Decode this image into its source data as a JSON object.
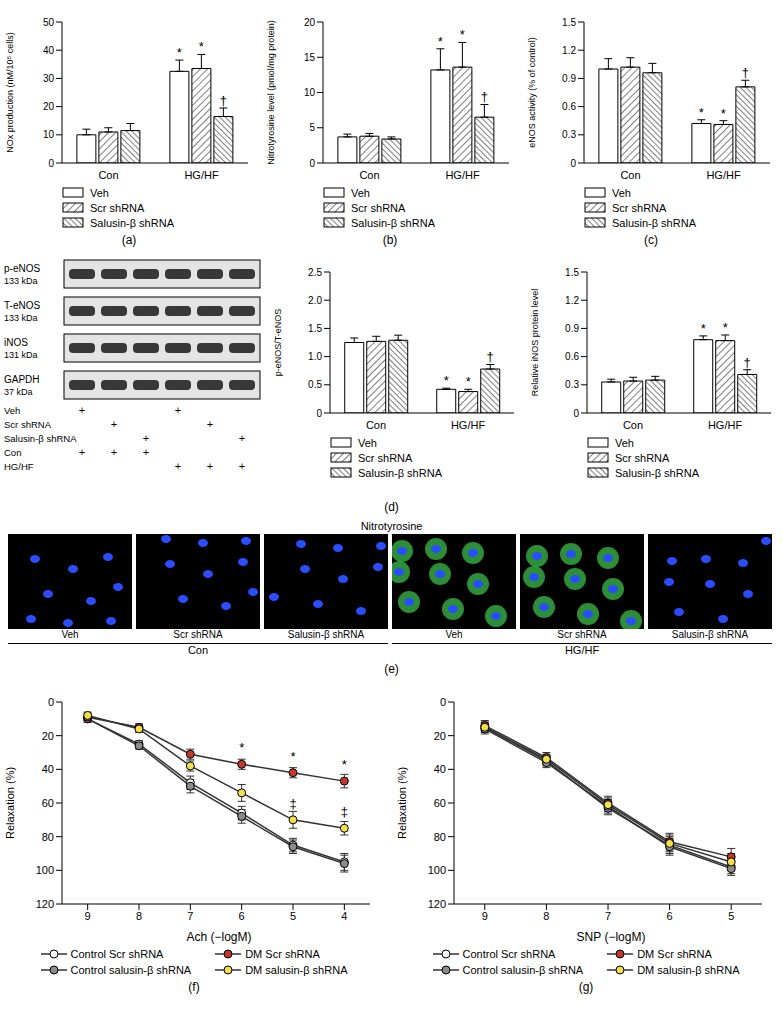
{
  "chart_data": [
    {
      "panel": "(a)",
      "type": "bar",
      "ylabel": "NOx production (nM/10⁵ cells)",
      "categories": [
        "Con",
        "HG/HF"
      ],
      "ylim": [
        0,
        50
      ],
      "yticks": [
        0,
        10,
        20,
        30,
        40,
        50
      ],
      "legend": "bottom",
      "series": [
        {
          "name": "Veh",
          "color": "#ffffff",
          "values": [
            10,
            32.5
          ],
          "errors": [
            2,
            4
          ],
          "annotations": [
            null,
            "*"
          ]
        },
        {
          "name": "Scr shRNA",
          "color": "#ffffff",
          "values": [
            11,
            33.5
          ],
          "errors": [
            1.5,
            5
          ],
          "annotations": [
            null,
            "*"
          ]
        },
        {
          "name": "Salusin-β shRNA",
          "color": "#ffffff",
          "values": [
            11.5,
            16.5
          ],
          "errors": [
            2.5,
            3
          ],
          "annotations": [
            null,
            "†"
          ]
        }
      ]
    },
    {
      "panel": "(b)",
      "type": "bar",
      "ylabel": "Nitrotyrosine level (pmol/mg protein)",
      "categories": [
        "Con",
        "HG/HF"
      ],
      "ylim": [
        0,
        20
      ],
      "yticks": [
        0,
        5,
        10,
        15,
        20
      ],
      "legend": "bottom",
      "series": [
        {
          "name": "Veh",
          "color": "#ffffff",
          "values": [
            3.7,
            13.2
          ],
          "errors": [
            0.4,
            3
          ],
          "annotations": [
            null,
            "*"
          ]
        },
        {
          "name": "Scr shRNA",
          "color": "#ffffff",
          "values": [
            3.8,
            13.6
          ],
          "errors": [
            0.4,
            3.5
          ],
          "annotations": [
            null,
            "*"
          ]
        },
        {
          "name": "Salusin-β shRNA",
          "color": "#ffffff",
          "values": [
            3.4,
            6.5
          ],
          "errors": [
            0.3,
            1.8
          ],
          "annotations": [
            null,
            "†"
          ]
        }
      ]
    },
    {
      "panel": "(c)",
      "type": "bar",
      "ylabel": "eNOS activity (% of control)",
      "categories": [
        "Con",
        "HG/HF"
      ],
      "ylim": [
        0,
        1.5
      ],
      "yticks": [
        0,
        0.3,
        0.6,
        0.9,
        1.2,
        1.5
      ],
      "legend": "bottom",
      "series": [
        {
          "name": "Veh",
          "color": "#ffffff",
          "values": [
            1.0,
            0.42
          ],
          "errors": [
            0.11,
            0.04
          ],
          "annotations": [
            null,
            "*"
          ]
        },
        {
          "name": "Scr shRNA",
          "color": "#ffffff",
          "values": [
            1.02,
            0.41
          ],
          "errors": [
            0.1,
            0.04
          ],
          "annotations": [
            null,
            "*"
          ]
        },
        {
          "name": "Salusin-β shRNA",
          "color": "#ffffff",
          "values": [
            0.96,
            0.81
          ],
          "errors": [
            0.1,
            0.07
          ],
          "annotations": [
            null,
            "†"
          ]
        }
      ]
    },
    {
      "type": "bar",
      "ylabel": "p-eNOS/T-eNOS",
      "categories": [
        "Con",
        "HG/HF"
      ],
      "ylim": [
        0,
        2.5
      ],
      "yticks": [
        0,
        0.5,
        {
          "value": 1,
          "label": "1.0"
        },
        1.5,
        {
          "value": 2,
          "label": "2.0"
        },
        2.5
      ],
      "legend": "bottom",
      "series": [
        {
          "name": "Veh",
          "color": "#ffffff",
          "values": [
            1.25,
            0.42
          ],
          "errors": [
            0.08,
            0.02
          ],
          "annotations": [
            null,
            "*"
          ]
        },
        {
          "name": "Scr shRNA",
          "color": "#ffffff",
          "values": [
            1.27,
            0.38
          ],
          "errors": [
            0.09,
            0.04
          ],
          "annotations": [
            null,
            "*"
          ]
        },
        {
          "name": "Salusin-β shRNA",
          "color": "#ffffff",
          "values": [
            1.29,
            0.78
          ],
          "errors": [
            0.09,
            0.08
          ],
          "annotations": [
            null,
            "†"
          ]
        }
      ]
    },
    {
      "type": "bar",
      "ylabel": "Relative iNOS protein level",
      "categories": [
        "Con",
        "HG/HF"
      ],
      "ylim": [
        0,
        1.5
      ],
      "yticks": [
        0,
        0.3,
        0.6,
        0.9,
        1.2,
        1.5
      ],
      "legend": "bottom",
      "series": [
        {
          "name": "Veh",
          "color": "#ffffff",
          "values": [
            0.33,
            0.78
          ],
          "errors": [
            0.03,
            0.04
          ],
          "annotations": [
            null,
            "*"
          ]
        },
        {
          "name": "Scr shRNA",
          "color": "#ffffff",
          "values": [
            0.34,
            0.77
          ],
          "errors": [
            0.04,
            0.06
          ],
          "annotations": [
            null,
            "*"
          ]
        },
        {
          "name": "Salusin-β shRNA",
          "color": "#ffffff",
          "values": [
            0.35,
            0.41
          ],
          "errors": [
            0.04,
            0.05
          ],
          "annotations": [
            null,
            "†"
          ]
        }
      ]
    },
    {
      "panel": "(f)",
      "type": "line",
      "xlabel": "Ach (−logM)",
      "ylabel": "Relaxation (%)",
      "x": [
        9,
        8,
        7,
        6,
        5,
        4
      ],
      "xlim": [
        9.5,
        3.5
      ],
      "xticks": [
        9,
        8,
        7,
        6,
        5,
        4
      ],
      "ylim": [
        120,
        0
      ],
      "yticks": [
        0,
        20,
        40,
        60,
        80,
        100,
        120
      ],
      "legend": "bottom",
      "series": [
        {
          "name": "Control Scr shRNA",
          "color": "#ffffff",
          "marker": "o",
          "values": [
            10,
            25,
            48,
            66,
            85,
            95
          ],
          "errors": [
            2,
            2,
            4,
            4,
            4,
            5
          ]
        },
        {
          "name": "Control salusin-β shRNA",
          "color": "#8c8c8c",
          "marker": "o",
          "values": [
            10,
            26,
            50,
            68,
            86,
            96
          ],
          "errors": [
            2,
            2,
            4,
            4,
            4,
            5
          ]
        },
        {
          "name": "DM Scr shRNA",
          "color": "#c0392b",
          "marker": "o",
          "values": [
            9,
            15,
            31,
            37,
            42,
            47
          ],
          "errors": [
            2,
            2,
            3,
            3,
            3,
            4
          ],
          "annotations": [
            null,
            null,
            null,
            "*",
            "*",
            "*"
          ]
        },
        {
          "name": "DM salusin-β shRNA",
          "color": "#f0e050",
          "marker": "o",
          "values": [
            8,
            16,
            38,
            54,
            70,
            75
          ],
          "errors": [
            2,
            2,
            3,
            5,
            5,
            4
          ],
          "annotations": [
            null,
            null,
            null,
            null,
            "‡",
            "‡"
          ]
        }
      ]
    },
    {
      "panel": "(g)",
      "type": "line",
      "xlabel": "SNP (−logM)",
      "ylabel": "Relaxation (%)",
      "x": [
        9,
        8,
        7,
        6,
        5
      ],
      "xlim": [
        9.5,
        4.5
      ],
      "xticks": [
        9,
        8,
        7,
        6,
        5
      ],
      "ylim": [
        120,
        0
      ],
      "yticks": [
        0,
        20,
        40,
        60,
        80,
        100,
        120
      ],
      "legend": "bottom",
      "series": [
        {
          "name": "Control Scr shRNA",
          "color": "#ffffff",
          "marker": "o",
          "values": [
            15,
            35,
            63,
            85,
            98
          ],
          "errors": [
            3,
            3,
            4,
            5,
            4
          ]
        },
        {
          "name": "Control salusin-β shRNA",
          "color": "#8c8c8c",
          "marker": "o",
          "values": [
            16,
            36,
            62,
            86,
            99
          ],
          "errors": [
            3,
            3,
            4,
            5,
            4
          ]
        },
        {
          "name": "DM Scr shRNA",
          "color": "#c0392b",
          "marker": "o",
          "values": [
            14,
            33,
            60,
            83,
            92
          ],
          "errors": [
            3,
            3,
            4,
            5,
            5
          ]
        },
        {
          "name": "DM salusin-β shRNA",
          "color": "#f0e050",
          "marker": "o",
          "values": [
            15,
            34,
            61,
            84,
            95
          ],
          "errors": [
            3,
            3,
            4,
            5,
            5
          ]
        }
      ]
    }
  ],
  "western_blot": {
    "panel": "(d)",
    "bands": [
      {
        "name": "p-eNOS",
        "size": "133 kDa"
      },
      {
        "name": "T-eNOS",
        "size": "133 kDa"
      },
      {
        "name": "iNOS",
        "size": "131 kDa"
      },
      {
        "name": "GAPDH",
        "size": "37 kDa"
      }
    ],
    "conditions": [
      {
        "label": "Veh",
        "lanes": [
          "+",
          null,
          null,
          "+",
          null,
          null
        ]
      },
      {
        "label": "Scr shRNA",
        "lanes": [
          null,
          "+",
          null,
          null,
          "+",
          null
        ]
      },
      {
        "label": "Salusin-β shRNA",
        "lanes": [
          null,
          null,
          "+",
          null,
          null,
          "+"
        ]
      },
      {
        "label": "Con",
        "lanes": [
          "+",
          "+",
          "+",
          null,
          null,
          null
        ]
      },
      {
        "label": "HG/HF",
        "lanes": [
          null,
          null,
          null,
          "+",
          "+",
          "+"
        ]
      }
    ]
  },
  "immunofluorescence": {
    "panel": "(e)",
    "title": "Nitrotyrosine",
    "groups": [
      {
        "label": "Con",
        "images": [
          "Veh",
          "Scr shRNA",
          "Salusin-β shRNA"
        ]
      },
      {
        "label": "HG/HF",
        "images": [
          "Veh",
          "Scr shRNA",
          "Salusin-β shRNA"
        ]
      }
    ]
  }
}
